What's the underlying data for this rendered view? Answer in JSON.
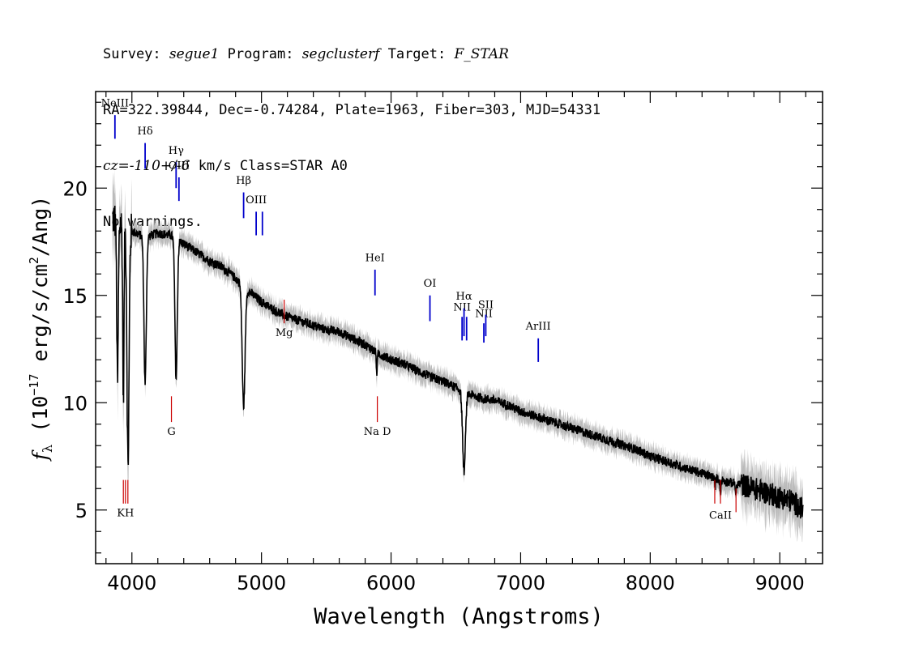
{
  "header": {
    "survey_label": "Survey: ",
    "survey": "segue1",
    "program_label": " Program: ",
    "program": "segclusterf",
    "target_label": " Target: ",
    "target": "F_STAR",
    "line2": "RA=322.39844, Dec=-0.74284, Plate=1963, Fiber=303, MJD=54331",
    "cz": "cz=-110+/-6",
    "cz_rest": " km/s Class=STAR A0",
    "line4": "No warnings."
  },
  "chart_data": {
    "type": "line",
    "xlabel": "Wavelength (Angstroms)",
    "ylabel": "f_λ (10^-17 erg/s/cm^2/Ang)",
    "ylabel_parts": {
      "f": "f",
      "lambda": "λ",
      "pre": " (10",
      "exp": "−17",
      "mid": " erg/s/cm",
      "exp2": "2",
      "post": "/Ang)"
    },
    "xlim": [
      3720,
      9330
    ],
    "ylim": [
      2.5,
      24.5
    ],
    "xticks": [
      4000,
      5000,
      6000,
      7000,
      8000,
      9000
    ],
    "xtick_labels": [
      "4000",
      "5000",
      "6000",
      "7000",
      "8000",
      "9000"
    ],
    "yticks": [
      5,
      10,
      15,
      20
    ],
    "ytick_labels": [
      "5",
      "10",
      "15",
      "20"
    ],
    "colors": {
      "spectrum": "#000000",
      "error_band": "#bbbbbb",
      "emission": "#0000cc",
      "absorption": "#cc0000",
      "axes": "#000000"
    },
    "continuum": [
      [
        3850,
        18.6
      ],
      [
        3900,
        18.4
      ],
      [
        4000,
        18.0
      ],
      [
        4100,
        17.7
      ],
      [
        4200,
        17.9
      ],
      [
        4300,
        17.8
      ],
      [
        4400,
        17.4
      ],
      [
        4500,
        17.0
      ],
      [
        4600,
        16.6
      ],
      [
        4700,
        16.3
      ],
      [
        4800,
        15.8
      ],
      [
        4900,
        15.2
      ],
      [
        5000,
        14.7
      ],
      [
        5100,
        14.3
      ],
      [
        5200,
        14.0
      ],
      [
        5300,
        13.8
      ],
      [
        5400,
        13.6
      ],
      [
        5500,
        13.4
      ],
      [
        5600,
        13.3
      ],
      [
        5700,
        13.0
      ],
      [
        5800,
        12.7
      ],
      [
        5900,
        12.3
      ],
      [
        6000,
        12.0
      ],
      [
        6100,
        11.8
      ],
      [
        6200,
        11.5
      ],
      [
        6300,
        11.2
      ],
      [
        6400,
        11.0
      ],
      [
        6500,
        10.7
      ],
      [
        6600,
        10.4
      ],
      [
        6700,
        10.2
      ],
      [
        6800,
        10.1
      ],
      [
        6900,
        9.9
      ],
      [
        7000,
        9.6
      ],
      [
        7100,
        9.4
      ],
      [
        7200,
        9.2
      ],
      [
        7300,
        9.0
      ],
      [
        7400,
        8.8
      ],
      [
        7500,
        8.6
      ],
      [
        7600,
        8.4
      ],
      [
        7700,
        8.2
      ],
      [
        7800,
        8.0
      ],
      [
        7900,
        7.8
      ],
      [
        8000,
        7.5
      ],
      [
        8100,
        7.3
      ],
      [
        8200,
        7.1
      ],
      [
        8300,
        6.9
      ],
      [
        8400,
        6.7
      ],
      [
        8500,
        6.5
      ],
      [
        8600,
        6.3
      ],
      [
        8700,
        6.2
      ],
      [
        8800,
        6.0
      ],
      [
        8900,
        5.8
      ],
      [
        9000,
        5.6
      ],
      [
        9100,
        5.4
      ],
      [
        9180,
        5.0
      ]
    ],
    "absorption_features": [
      {
        "center": 3835,
        "depth": 9.0,
        "width": 5
      },
      {
        "center": 3889,
        "depth": 7.5,
        "width": 6
      },
      {
        "center": 3934,
        "depth": 8.0,
        "width": 5
      },
      {
        "center": 3970,
        "depth": 11.0,
        "width": 8
      },
      {
        "center": 4102,
        "depth": 6.8,
        "width": 9
      },
      {
        "center": 4341,
        "depth": 6.5,
        "width": 9
      },
      {
        "center": 4862,
        "depth": 5.6,
        "width": 11
      },
      {
        "center": 5890,
        "depth": 0.9,
        "width": 4
      },
      {
        "center": 6563,
        "depth": 3.7,
        "width": 11
      },
      {
        "center": 8500,
        "depth": 0.4,
        "width": 4
      },
      {
        "center": 8542,
        "depth": 0.6,
        "width": 4
      },
      {
        "center": 8662,
        "depth": 0.5,
        "width": 4
      }
    ],
    "line_markers": [
      {
        "label": "NeIII",
        "x": 3869,
        "y_top": 23.4,
        "y_bot": 22.3,
        "label_y": 23.8,
        "kind": "emission"
      },
      {
        "label": "Hδ",
        "x": 4102,
        "y_top": 22.1,
        "y_bot": 20.9,
        "label_y": 22.5,
        "kind": "emission"
      },
      {
        "label": "Hγ",
        "x": 4341,
        "y_top": 21.2,
        "y_bot": 20.0,
        "label_y": 21.6,
        "kind": "emission"
      },
      {
        "label": "OIII",
        "x": 4363,
        "y_top": 20.5,
        "y_bot": 19.4,
        "label_y": 20.9,
        "kind": "emission"
      },
      {
        "label": "Hβ",
        "x": 4862,
        "y_top": 19.8,
        "y_bot": 18.6,
        "label_y": 20.2,
        "kind": "emission"
      },
      {
        "label": "OIII",
        "x": 4959,
        "y_top": 18.9,
        "y_bot": 17.8,
        "label_y": 19.3,
        "kind": "emission"
      },
      {
        "label": "",
        "x": 5007,
        "y_top": 18.9,
        "y_bot": 17.8,
        "label_y": 19.3,
        "kind": "emission"
      },
      {
        "label": "HeI",
        "x": 5876,
        "y_top": 16.2,
        "y_bot": 15.0,
        "label_y": 16.6,
        "kind": "emission"
      },
      {
        "label": "OI",
        "x": 6300,
        "y_top": 15.0,
        "y_bot": 13.8,
        "label_y": 15.4,
        "kind": "emission"
      },
      {
        "label": "NII",
        "x": 6548,
        "y_top": 14.0,
        "y_bot": 12.9,
        "label_y": 14.3,
        "kind": "emission"
      },
      {
        "label": "Hα",
        "x": 6563,
        "y_top": 14.4,
        "y_bot": 13.1,
        "label_y": 14.8,
        "kind": "emission"
      },
      {
        "label": "",
        "x": 6583,
        "y_top": 14.0,
        "y_bot": 12.9,
        "label_y": 14.3,
        "kind": "emission"
      },
      {
        "label": "NII",
        "x": 6716,
        "y_top": 13.7,
        "y_bot": 12.8,
        "label_y": 14.0,
        "kind": "emission"
      },
      {
        "label": "SII",
        "x": 6731,
        "y_top": 14.1,
        "y_bot": 13.1,
        "label_y": 14.4,
        "kind": "emission"
      },
      {
        "label": "ArIII",
        "x": 7136,
        "y_top": 13.0,
        "y_bot": 11.9,
        "label_y": 13.4,
        "kind": "emission"
      },
      {
        "label": "KH",
        "x": 3950,
        "y_top": 6.4,
        "y_bot": 5.3,
        "label_y": 4.7,
        "kind": "absorption"
      },
      {
        "label": "",
        "x": 3934,
        "y_top": 6.4,
        "y_bot": 5.3,
        "label_y": 4.7,
        "kind": "absorption"
      },
      {
        "label": "",
        "x": 3969,
        "y_top": 6.4,
        "y_bot": 5.3,
        "label_y": 4.7,
        "kind": "absorption"
      },
      {
        "label": "G",
        "x": 4305,
        "y_top": 10.3,
        "y_bot": 9.1,
        "label_y": 8.5,
        "kind": "absorption"
      },
      {
        "label": "Mg",
        "x": 5175,
        "y_top": 14.8,
        "y_bot": 13.7,
        "label_y": 13.1,
        "kind": "absorption"
      },
      {
        "label": "Na D",
        "x": 5894,
        "y_top": 10.3,
        "y_bot": 9.1,
        "label_y": 8.5,
        "kind": "absorption"
      },
      {
        "label": "CaII",
        "x": 8542,
        "y_top": 6.4,
        "y_bot": 5.3,
        "label_y": 4.6,
        "kind": "absorption"
      },
      {
        "label": "",
        "x": 8498,
        "y_top": 6.4,
        "y_bot": 5.3,
        "label_y": 4.6,
        "kind": "absorption"
      },
      {
        "label": "",
        "x": 8662,
        "y_top": 6.0,
        "y_bot": 4.9,
        "label_y": 4.6,
        "kind": "absorption"
      }
    ]
  }
}
